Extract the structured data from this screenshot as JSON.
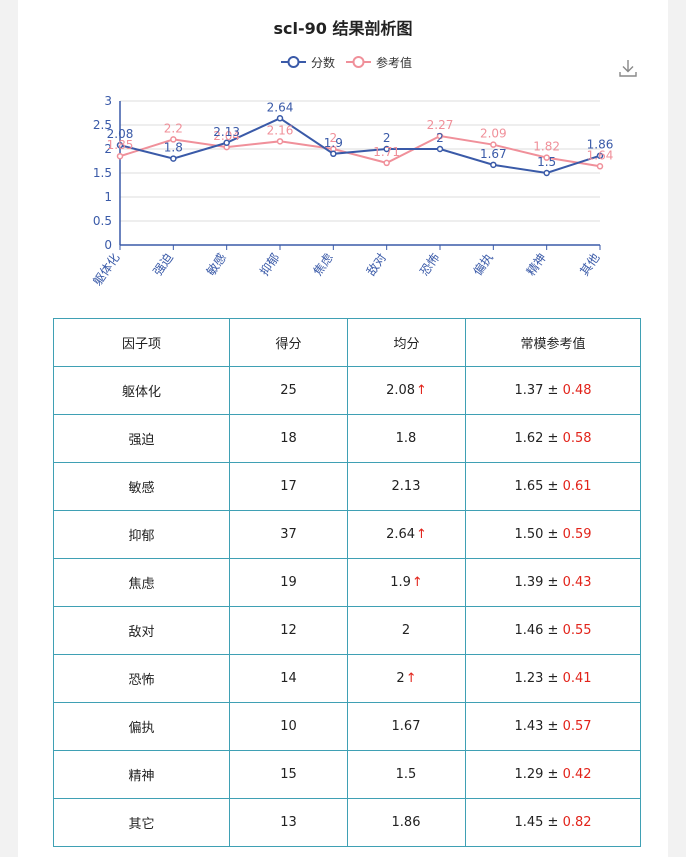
{
  "title": "scl-90 结果剖析图",
  "legend": {
    "score": "分数",
    "ref": "参考值"
  },
  "colors": {
    "score": "#3a5aa8",
    "ref": "#f0909a",
    "up_arrow": "#e2231a",
    "border": "#3fa0b4"
  },
  "chart_data": {
    "type": "line",
    "title": "scl-90 结果剖析图",
    "categories": [
      "躯体化",
      "强迫",
      "敏感",
      "抑郁",
      "焦虑",
      "敌对",
      "恐怖",
      "偏执",
      "精神",
      "其他"
    ],
    "series": [
      {
        "name": "分数",
        "values": [
          2.08,
          1.8,
          2.13,
          2.64,
          1.9,
          2,
          2,
          1.67,
          1.5,
          1.86
        ]
      },
      {
        "name": "参考值",
        "values": [
          1.85,
          2.2,
          2.04,
          2.16,
          2,
          1.71,
          2.27,
          2.09,
          1.82,
          1.64
        ]
      }
    ],
    "ylim": [
      0,
      3
    ],
    "yticks": [
      "0",
      "0.5",
      "1",
      "1.5",
      "2",
      "2.5",
      "3"
    ],
    "grid": true,
    "legend_position": "top-center"
  },
  "table": {
    "headers": [
      "因子项",
      "得分",
      "均分",
      "常模参考值"
    ],
    "rows": [
      {
        "name": "躯体化",
        "score": "25",
        "avg": "2.08",
        "up": "↑",
        "norm": "1.37 ±",
        "sd": "0.48"
      },
      {
        "name": "强迫",
        "score": "18",
        "avg": "1.8",
        "up": "",
        "norm": "1.62 ±",
        "sd": "0.58"
      },
      {
        "name": "敏感",
        "score": "17",
        "avg": "2.13",
        "up": "",
        "norm": "1.65 ±",
        "sd": "0.61"
      },
      {
        "name": "抑郁",
        "score": "37",
        "avg": "2.64",
        "up": "↑",
        "norm": "1.50 ±",
        "sd": "0.59"
      },
      {
        "name": "焦虑",
        "score": "19",
        "avg": "1.9",
        "up": "↑",
        "norm": "1.39 ±",
        "sd": "0.43"
      },
      {
        "name": "敌对",
        "score": "12",
        "avg": "2",
        "up": "",
        "norm": "1.46 ±",
        "sd": "0.55"
      },
      {
        "name": "恐怖",
        "score": "14",
        "avg": "2",
        "up": "↑",
        "norm": "1.23 ±",
        "sd": "0.41"
      },
      {
        "name": "偏执",
        "score": "10",
        "avg": "1.67",
        "up": "",
        "norm": "1.43 ±",
        "sd": "0.57"
      },
      {
        "name": "精神",
        "score": "15",
        "avg": "1.5",
        "up": "",
        "norm": "1.29 ±",
        "sd": "0.42"
      },
      {
        "name": "其它",
        "score": "13",
        "avg": "1.86",
        "up": "",
        "norm": "1.45 ±",
        "sd": "0.82"
      }
    ]
  }
}
